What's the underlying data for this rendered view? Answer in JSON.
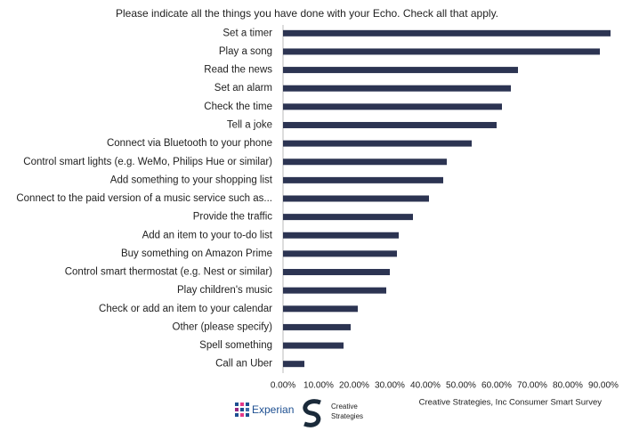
{
  "chart_data": {
    "type": "hbar",
    "title": "Please indicate all the things you have done with your Echo. Check all that apply.",
    "categories": [
      "Set a timer",
      "Play a song",
      "Read the news",
      "Set an alarm",
      "Check the time",
      "Tell a joke",
      "Connect via Bluetooth to your phone",
      "Control smart lights (e.g. WeMo, Philips Hue or similar)",
      "Add something to your shopping list",
      "Connect to the paid version of a music service such as...",
      "Provide the traffic",
      "Add an item to your to-do list",
      "Buy something on Amazon Prime",
      "Control smart thermostat (e.g. Nest or similar)",
      "Play children's music",
      "Check or add an item to your calendar",
      "Other (please specify)",
      "Spell something",
      "Call an Uber"
    ],
    "values": [
      92,
      89,
      66,
      64,
      61.5,
      60,
      53,
      46,
      45,
      41,
      36.5,
      32.5,
      32,
      30,
      29,
      21,
      19,
      17,
      6
    ],
    "color": "#2c3452",
    "xlim": [
      0,
      92
    ],
    "xticks": [
      {
        "value": 0,
        "label": "0.00%"
      },
      {
        "value": 10,
        "label": "10.00%"
      },
      {
        "value": 20,
        "label": "20.00%"
      },
      {
        "value": 30,
        "label": "30.00%"
      },
      {
        "value": 40,
        "label": "40.00%"
      },
      {
        "value": 50,
        "label": "50.00%"
      },
      {
        "value": 60,
        "label": "60.00%"
      },
      {
        "value": 70,
        "label": "70.00%"
      },
      {
        "value": 80,
        "label": "80.00%"
      },
      {
        "value": 90,
        "label": "90.00%"
      }
    ],
    "grid": false,
    "source": "Creative Strategies, Inc Consumer Smart Survey",
    "logos": {
      "experian": "Experian",
      "creative_1": "Creative",
      "creative_2": "Strategies"
    }
  }
}
